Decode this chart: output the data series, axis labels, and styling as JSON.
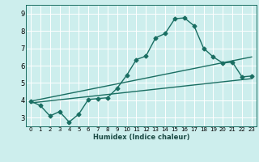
{
  "xlabel": "Humidex (Indice chaleur)",
  "background_color": "#cdeeed",
  "grid_color": "#ffffff",
  "line_color": "#1a6e62",
  "xlim": [
    -0.5,
    23.5
  ],
  "ylim": [
    2.5,
    9.5
  ],
  "xticks": [
    0,
    1,
    2,
    3,
    4,
    5,
    6,
    7,
    8,
    9,
    10,
    11,
    12,
    13,
    14,
    15,
    16,
    17,
    18,
    19,
    20,
    21,
    22,
    23
  ],
  "yticks": [
    3,
    4,
    5,
    6,
    7,
    8,
    9
  ],
  "series1_x": [
    0,
    1,
    2,
    3,
    4,
    5,
    6,
    7,
    8,
    9,
    10,
    11,
    12,
    13,
    14,
    15,
    16,
    17,
    18,
    19,
    20,
    21,
    22,
    23
  ],
  "series1_y": [
    3.95,
    3.7,
    3.1,
    3.35,
    2.75,
    3.2,
    4.05,
    4.1,
    4.15,
    4.7,
    5.45,
    6.35,
    6.55,
    7.6,
    7.85,
    8.7,
    8.75,
    8.3,
    7.0,
    6.5,
    6.15,
    6.2,
    5.35,
    5.4
  ],
  "series2_x": [
    0,
    23
  ],
  "series2_y": [
    3.85,
    5.25
  ],
  "series3_x": [
    0,
    23
  ],
  "series3_y": [
    3.95,
    6.5
  ],
  "marker": "D",
  "markersize": 2.5,
  "linewidth": 1.0
}
